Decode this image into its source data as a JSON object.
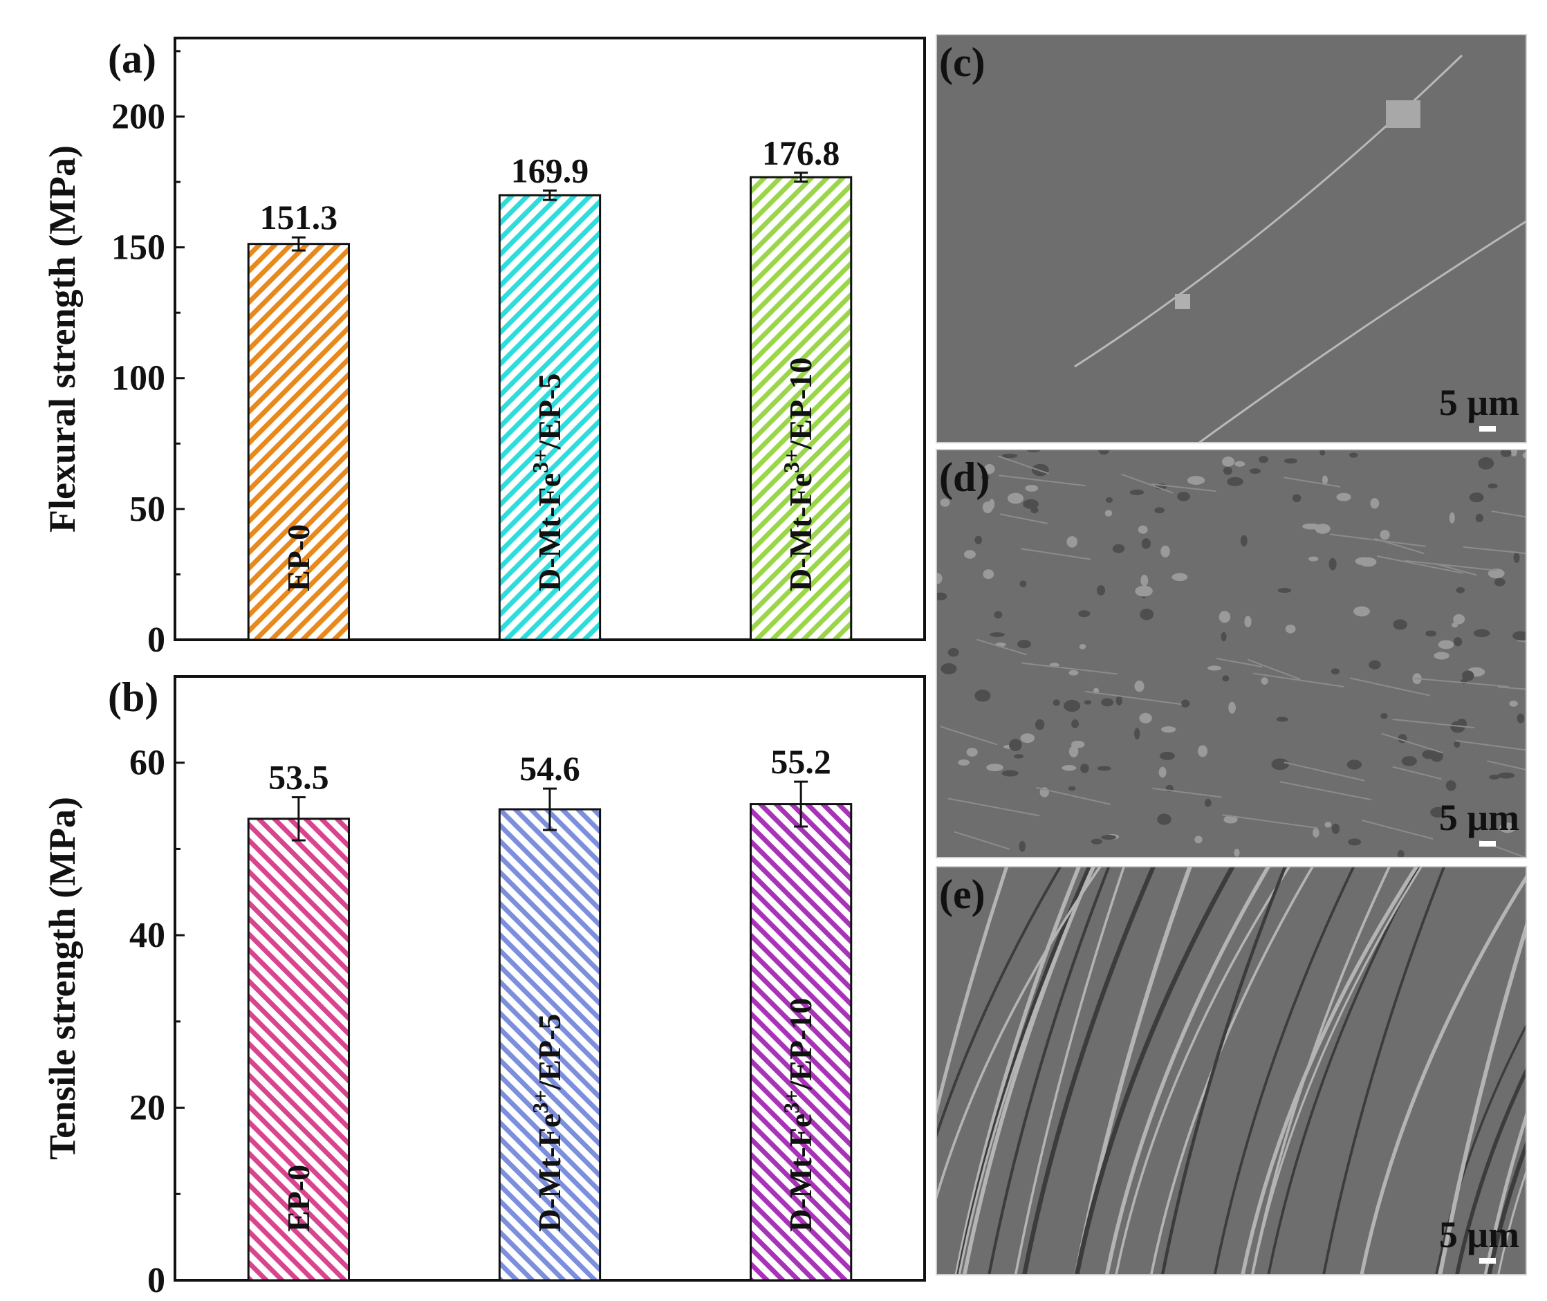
{
  "chart_data": [
    {
      "panel_label": "(a)",
      "type": "bar",
      "ylabel": "Flexural strength (MPa)",
      "ylim": [
        0,
        230
      ],
      "yticks": [
        0,
        50,
        100,
        150,
        200
      ],
      "categories": [
        "EP-0",
        "D-Mt-Fe3+/EP-5",
        "D-Mt-Fe3+/EP-10"
      ],
      "values": [
        151.3,
        169.9,
        176.8
      ],
      "value_labels": [
        "151.3",
        "169.9",
        "176.8"
      ],
      "errors": [
        2.5,
        1.8,
        1.7
      ],
      "bar_colors": [
        "#e8891e",
        "#2fdcdc",
        "#9bd64a"
      ],
      "grid": false,
      "legend": "none"
    },
    {
      "panel_label": "(b)",
      "type": "bar",
      "ylabel": "Tensile strength (MPa)",
      "ylim": [
        0,
        70
      ],
      "yticks": [
        0,
        20,
        40,
        60
      ],
      "categories": [
        "EP-0",
        "D-Mt-Fe3+/EP-5",
        "D-Mt-Fe3+/EP-10"
      ],
      "values": [
        53.5,
        54.6,
        55.2
      ],
      "value_labels": [
        "53.5",
        "54.6",
        "55.2"
      ],
      "errors": [
        2.5,
        2.4,
        2.6
      ],
      "bar_colors": [
        "#d9448f",
        "#7b8fdc",
        "#a832b8"
      ],
      "grid": false,
      "legend": "none"
    }
  ],
  "category_label_parts": [
    {
      "pre": "EP-0",
      "sup": "",
      "post": ""
    },
    {
      "pre": "D-Mt-Fe",
      "sup": "3+",
      "post": "/EP-5"
    },
    {
      "pre": "D-Mt-Fe",
      "sup": "3+",
      "post": "/EP-10"
    }
  ],
  "sem_panels": [
    {
      "label": "(c)",
      "scale_bar": "5 μm"
    },
    {
      "label": "(d)",
      "scale_bar": "5 μm"
    },
    {
      "label": "(e)",
      "scale_bar": "5 μm"
    }
  ],
  "colors": {
    "axis": "#111111",
    "sem_base": "#6e6e6e"
  }
}
